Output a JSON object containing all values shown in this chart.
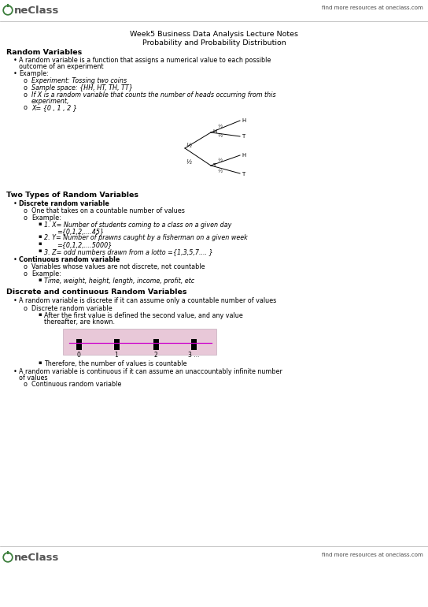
{
  "bg_color": "#ffffff",
  "oneclass_green": "#3a7d3a",
  "top_right_text": "find more resources at oneclass.com",
  "bottom_right_text": "find more resources at oneclass.com",
  "title_line1": "Week5 Business Data Analysis Lecture Notes",
  "title_line2": "Probability and Probability Distribution",
  "fs": 5.8,
  "fs_title": 6.8,
  "fs_header": 6.8,
  "fs_logo": 9.5,
  "fs_topright": 5.0
}
